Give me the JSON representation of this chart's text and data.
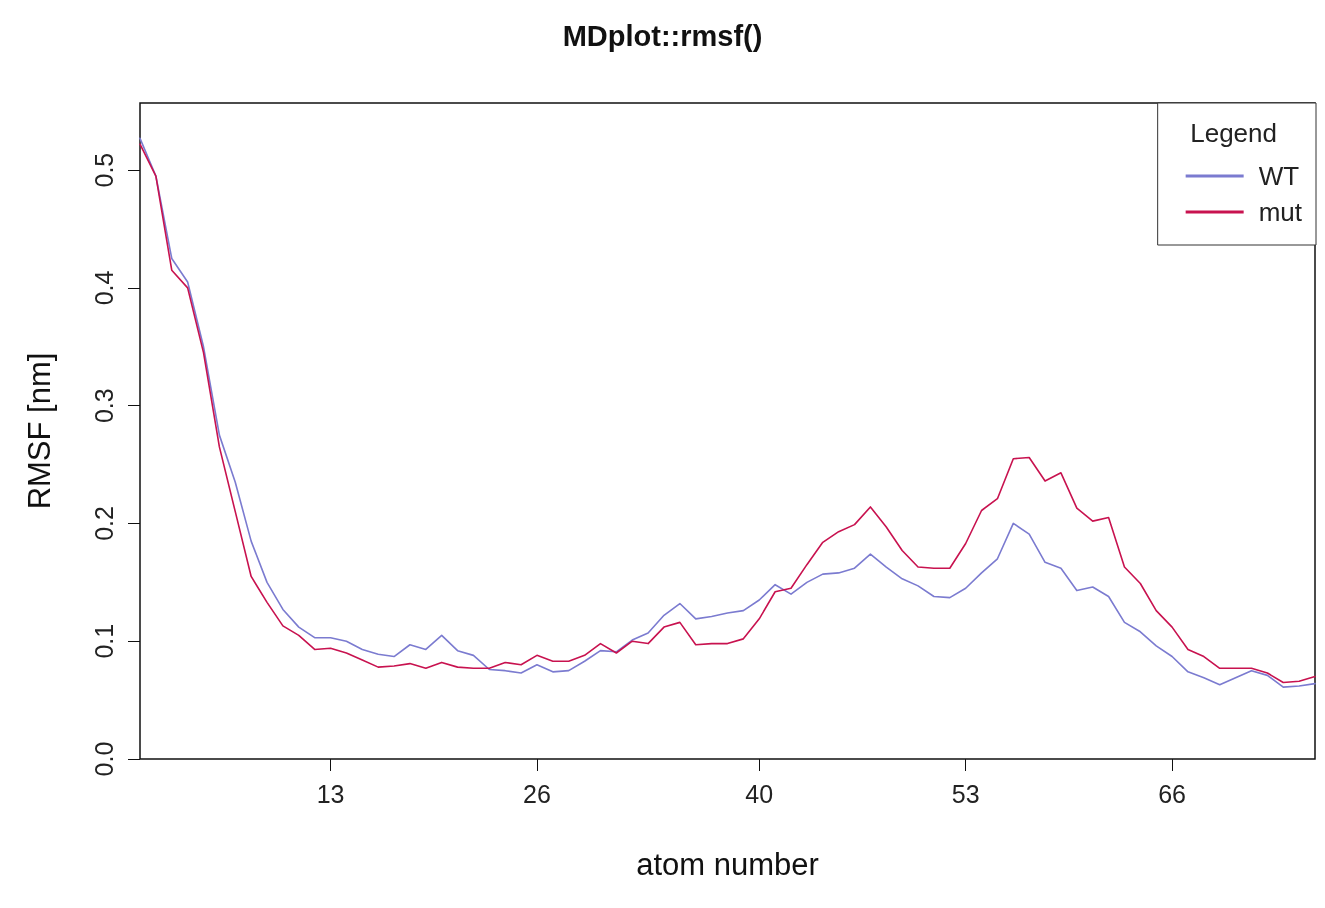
{
  "chart_data": {
    "type": "line",
    "title": "MDplot::rmsf()",
    "xlabel": "atom number",
    "ylabel": "RMSF [nm]",
    "legend_title": "Legend",
    "legend": "top right",
    "grid": false,
    "marker": "none",
    "line_style": "solid",
    "x": [
      1,
      2,
      3,
      4,
      5,
      6,
      7,
      8,
      9,
      10,
      11,
      12,
      13,
      14,
      15,
      16,
      17,
      18,
      19,
      20,
      21,
      22,
      23,
      24,
      25,
      26,
      27,
      28,
      29,
      30,
      31,
      32,
      33,
      34,
      35,
      36,
      37,
      38,
      39,
      40,
      41,
      42,
      43,
      44,
      45,
      46,
      47,
      48,
      49,
      50,
      51,
      52,
      53,
      54,
      55,
      56,
      57,
      58,
      59,
      60,
      61,
      62,
      63,
      64,
      65,
      66,
      67,
      68,
      69,
      70,
      71,
      72,
      73,
      74,
      75
    ],
    "xlim": [
      1,
      75
    ],
    "xticks": [
      13,
      26,
      40,
      53,
      66
    ],
    "ylim": [
      0,
      0.557
    ],
    "yticks": [
      {
        "value": 0,
        "label": "0.0"
      },
      0.1,
      0.2,
      0.3,
      0.4,
      0.5
    ],
    "series": [
      {
        "name": "WT",
        "color": "#7b7bd0",
        "values": [
          0.527,
          0.495,
          0.425,
          0.405,
          0.35,
          0.275,
          0.235,
          0.185,
          0.15,
          0.127,
          0.112,
          0.103,
          0.103,
          0.1,
          0.093,
          0.089,
          0.087,
          0.097,
          0.093,
          0.105,
          0.092,
          0.088,
          0.076,
          0.075,
          0.073,
          0.08,
          0.074,
          0.075,
          0.083,
          0.092,
          0.091,
          0.101,
          0.107,
          0.122,
          0.132,
          0.119,
          0.121,
          0.124,
          0.126,
          0.135,
          0.148,
          0.14,
          0.15,
          0.157,
          0.158,
          0.162,
          0.174,
          0.163,
          0.153,
          0.147,
          0.138,
          0.137,
          0.145,
          0.158,
          0.17,
          0.2,
          0.191,
          0.167,
          0.162,
          0.143,
          0.146,
          0.138,
          0.116,
          0.108,
          0.096,
          0.087,
          0.074,
          0.069,
          0.063,
          0.069,
          0.075,
          0.071,
          0.061,
          0.062,
          0.064
        ]
      },
      {
        "name": "mut",
        "color": "#c8124f",
        "values": [
          0.522,
          0.495,
          0.415,
          0.4,
          0.345,
          0.265,
          0.21,
          0.155,
          0.133,
          0.113,
          0.105,
          0.093,
          0.094,
          0.09,
          0.084,
          0.078,
          0.079,
          0.081,
          0.077,
          0.082,
          0.078,
          0.077,
          0.077,
          0.082,
          0.08,
          0.088,
          0.083,
          0.083,
          0.088,
          0.098,
          0.09,
          0.1,
          0.098,
          0.112,
          0.116,
          0.097,
          0.098,
          0.098,
          0.102,
          0.119,
          0.142,
          0.145,
          0.165,
          0.184,
          0.193,
          0.199,
          0.214,
          0.197,
          0.177,
          0.163,
          0.162,
          0.162,
          0.183,
          0.211,
          0.221,
          0.255,
          0.256,
          0.236,
          0.243,
          0.213,
          0.202,
          0.205,
          0.163,
          0.149,
          0.126,
          0.112,
          0.093,
          0.087,
          0.077,
          0.077,
          0.077,
          0.073,
          0.065,
          0.066,
          0.07
        ]
      }
    ]
  }
}
